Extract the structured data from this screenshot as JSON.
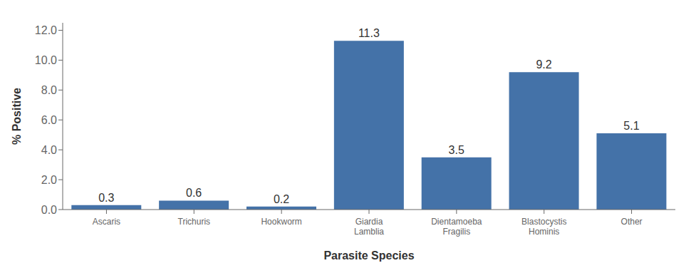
{
  "chart_data": {
    "type": "bar",
    "categories": [
      "Ascaris",
      "Trichuris",
      "Hookworm",
      "Giardia\nLamblia",
      "Dientamoeba\nFragilis",
      "Blastocystis\nHominis",
      "Other"
    ],
    "values": [
      0.3,
      0.6,
      0.2,
      11.3,
      3.5,
      9.2,
      5.1
    ],
    "color": "#4472a8",
    "xlabel": "Parasite Species",
    "ylabel": "% Positive",
    "ylim": [
      0,
      12.5
    ],
    "yticks": [
      {
        "value": 0,
        "label": "0.0"
      },
      {
        "value": 2,
        "label": "2.0"
      },
      {
        "value": 4,
        "label": "4.0"
      },
      {
        "value": 6,
        "label": "6.0"
      },
      {
        "value": 8,
        "label": "8.0"
      },
      {
        "value": 10,
        "label": "10.0"
      },
      {
        "value": 12,
        "label": "12.0"
      }
    ],
    "grid": false,
    "data_labels": true
  }
}
